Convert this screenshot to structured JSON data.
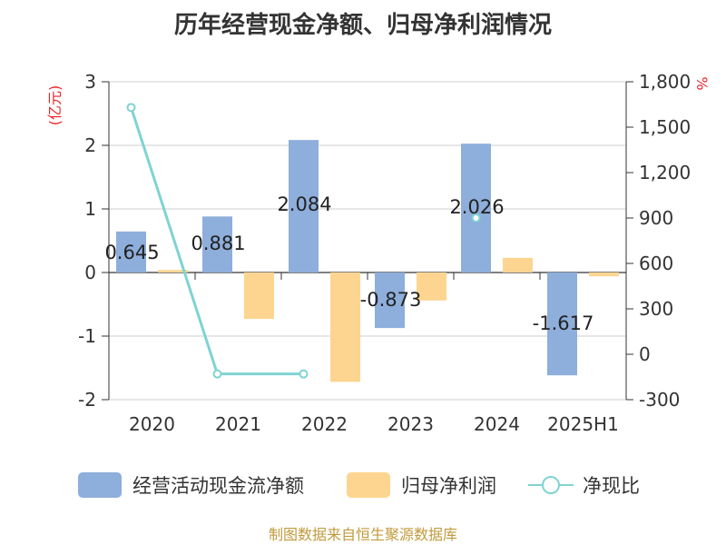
{
  "chart_data": {
    "type": "bar",
    "title": "历年经营现金净额、归母净利润情况",
    "left_unit": "(亿元)",
    "right_unit": "%",
    "categories": [
      "2020",
      "2021",
      "2022",
      "2023",
      "2024",
      "2025H1"
    ],
    "left_axis": {
      "min": -2,
      "max": 3,
      "ticks": [
        "3",
        "2",
        "1",
        "0",
        "-1",
        "-2"
      ]
    },
    "right_axis": {
      "min": -300,
      "max": 1800,
      "ticks": [
        "1,800",
        "1,500",
        "1,200",
        "900",
        "600",
        "300",
        "0",
        "-300"
      ]
    },
    "series": [
      {
        "name": "经营活动现金流净额",
        "type": "bar",
        "axis": "left",
        "color": "#8eaedb",
        "values": [
          0.645,
          0.881,
          2.084,
          -0.873,
          2.026,
          -1.617
        ],
        "labels": [
          "0.645",
          "0.881",
          "2.084",
          "-0.873",
          "2.026",
          "-1.617"
        ]
      },
      {
        "name": "归母净利润",
        "type": "bar",
        "axis": "left",
        "color": "#fdd590",
        "values": [
          0.04,
          -0.73,
          -1.72,
          -0.44,
          0.23,
          -0.06
        ]
      },
      {
        "name": "净现比",
        "type": "line",
        "axis": "right",
        "color": "#7fd3d3",
        "values": [
          1630,
          -130,
          -130,
          null,
          900,
          null
        ]
      }
    ],
    "legend_position": "bottom",
    "grid": true
  },
  "source": "制图数据来自恒生聚源数据库"
}
